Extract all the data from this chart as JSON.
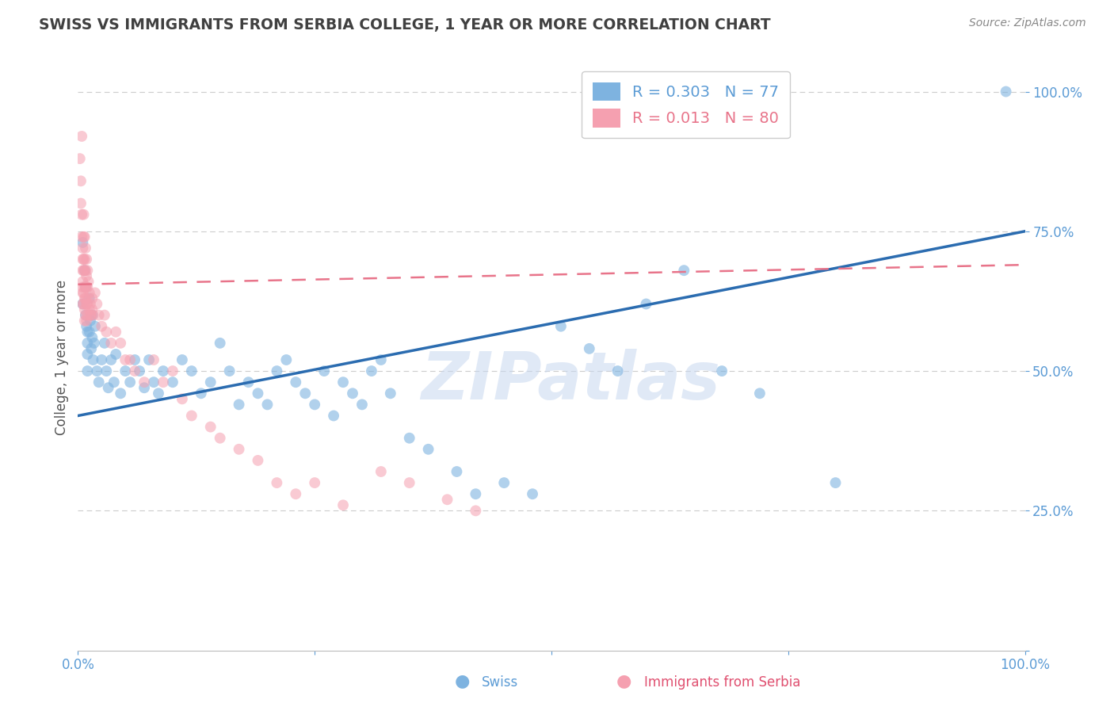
{
  "title": "SWISS VS IMMIGRANTS FROM SERBIA COLLEGE, 1 YEAR OR MORE CORRELATION CHART",
  "source_text": "Source: ZipAtlas.com",
  "ylabel": "College, 1 year or more",
  "watermark": "ZIPatlas",
  "legend_swiss_R": "R = 0.303",
  "legend_swiss_N": "N = 77",
  "legend_serbia_R": "R = 0.013",
  "legend_serbia_N": "N = 80",
  "blue_scatter_color": "#7EB3E0",
  "pink_scatter_color": "#F5A0B0",
  "blue_line_color": "#2B6CB0",
  "pink_line_color": "#E8748A",
  "axis_tick_color": "#5B9BD5",
  "title_color": "#404040",
  "source_color": "#888888",
  "grid_color": "#CCCCCC",
  "background_color": "#FFFFFF",
  "swiss_x": [
    0.005,
    0.005,
    0.007,
    0.008,
    0.008,
    0.009,
    0.01,
    0.01,
    0.01,
    0.01,
    0.012,
    0.012,
    0.013,
    0.014,
    0.015,
    0.015,
    0.016,
    0.017,
    0.018,
    0.02,
    0.022,
    0.025,
    0.028,
    0.03,
    0.032,
    0.035,
    0.038,
    0.04,
    0.045,
    0.05,
    0.055,
    0.06,
    0.065,
    0.07,
    0.075,
    0.08,
    0.085,
    0.09,
    0.1,
    0.11,
    0.12,
    0.13,
    0.14,
    0.15,
    0.16,
    0.17,
    0.18,
    0.19,
    0.2,
    0.21,
    0.22,
    0.23,
    0.24,
    0.25,
    0.26,
    0.27,
    0.28,
    0.29,
    0.3,
    0.31,
    0.32,
    0.33,
    0.35,
    0.37,
    0.4,
    0.42,
    0.45,
    0.48,
    0.51,
    0.54,
    0.57,
    0.6,
    0.64,
    0.68,
    0.72,
    0.8,
    0.98
  ],
  "swiss_y": [
    0.62,
    0.73,
    0.68,
    0.65,
    0.6,
    0.58,
    0.55,
    0.57,
    0.53,
    0.5,
    0.63,
    0.57,
    0.59,
    0.54,
    0.6,
    0.56,
    0.52,
    0.55,
    0.58,
    0.5,
    0.48,
    0.52,
    0.55,
    0.5,
    0.47,
    0.52,
    0.48,
    0.53,
    0.46,
    0.5,
    0.48,
    0.52,
    0.5,
    0.47,
    0.52,
    0.48,
    0.46,
    0.5,
    0.48,
    0.52,
    0.5,
    0.46,
    0.48,
    0.55,
    0.5,
    0.44,
    0.48,
    0.46,
    0.44,
    0.5,
    0.52,
    0.48,
    0.46,
    0.44,
    0.5,
    0.42,
    0.48,
    0.46,
    0.44,
    0.5,
    0.52,
    0.46,
    0.38,
    0.36,
    0.32,
    0.28,
    0.3,
    0.28,
    0.58,
    0.54,
    0.5,
    0.62,
    0.68,
    0.5,
    0.46,
    0.3,
    1.0
  ],
  "serbia_x": [
    0.002,
    0.003,
    0.003,
    0.004,
    0.004,
    0.004,
    0.005,
    0.005,
    0.005,
    0.005,
    0.005,
    0.005,
    0.005,
    0.006,
    0.006,
    0.006,
    0.006,
    0.006,
    0.006,
    0.007,
    0.007,
    0.007,
    0.007,
    0.007,
    0.007,
    0.007,
    0.008,
    0.008,
    0.008,
    0.008,
    0.008,
    0.009,
    0.009,
    0.009,
    0.009,
    0.009,
    0.01,
    0.01,
    0.01,
    0.01,
    0.011,
    0.011,
    0.012,
    0.012,
    0.013,
    0.013,
    0.014,
    0.015,
    0.015,
    0.016,
    0.018,
    0.02,
    0.022,
    0.025,
    0.028,
    0.03,
    0.035,
    0.04,
    0.045,
    0.05,
    0.055,
    0.06,
    0.07,
    0.08,
    0.09,
    0.1,
    0.11,
    0.12,
    0.14,
    0.15,
    0.17,
    0.19,
    0.21,
    0.23,
    0.25,
    0.28,
    0.32,
    0.35,
    0.39,
    0.42
  ],
  "serbia_y": [
    0.88,
    0.84,
    0.8,
    0.92,
    0.78,
    0.74,
    0.72,
    0.68,
    0.7,
    0.66,
    0.65,
    0.64,
    0.62,
    0.78,
    0.74,
    0.7,
    0.68,
    0.64,
    0.62,
    0.74,
    0.7,
    0.68,
    0.65,
    0.63,
    0.61,
    0.59,
    0.72,
    0.68,
    0.65,
    0.63,
    0.6,
    0.7,
    0.67,
    0.65,
    0.62,
    0.59,
    0.68,
    0.65,
    0.62,
    0.6,
    0.66,
    0.63,
    0.64,
    0.61,
    0.62,
    0.6,
    0.6,
    0.63,
    0.61,
    0.6,
    0.64,
    0.62,
    0.6,
    0.58,
    0.6,
    0.57,
    0.55,
    0.57,
    0.55,
    0.52,
    0.52,
    0.5,
    0.48,
    0.52,
    0.48,
    0.5,
    0.45,
    0.42,
    0.4,
    0.38,
    0.36,
    0.34,
    0.3,
    0.28,
    0.3,
    0.26,
    0.32,
    0.3,
    0.27,
    0.25
  ],
  "blue_trend": [
    0.0,
    0.42,
    1.0,
    0.75
  ],
  "pink_trend": [
    0.0,
    0.655,
    1.0,
    0.69
  ],
  "xlim": [
    0.0,
    1.0
  ],
  "ylim": [
    0.0,
    1.05
  ],
  "ytick_positions": [
    0.0,
    0.25,
    0.5,
    0.75,
    1.0
  ],
  "ytick_labels": [
    "",
    "25.0%",
    "50.0%",
    "75.0%",
    "100.0%"
  ],
  "xtick_positions": [
    0.0,
    0.25,
    0.5,
    0.75,
    1.0
  ],
  "xtick_labels": [
    "0.0%",
    "",
    "",
    "",
    "100.0%"
  ],
  "bottom_legend_swiss": "Swiss",
  "bottom_legend_serbia": "Immigrants from Serbia"
}
